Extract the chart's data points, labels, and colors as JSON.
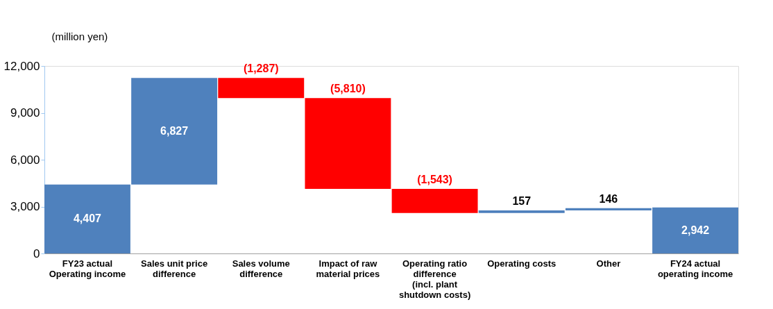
{
  "chart_data": {
    "type": "bar",
    "ylabel": "(million yen)",
    "categories": [
      "FY23 actual Operating income",
      "Sales unit price difference",
      "Sales volume difference",
      "Impact of raw material prices",
      "Operating ratio difference (incl. plant shutdown costs)",
      "Operating costs",
      "Other",
      "FY24 actual operating income"
    ],
    "values": [
      4407,
      6827,
      -1287,
      -5810,
      -1543,
      157,
      146,
      2942
    ],
    "base": [
      0,
      4407,
      11234,
      9947,
      4137,
      2594,
      2751,
      0
    ],
    "colors": [
      "#4f81bd",
      "#4f81bd",
      "#ff0000",
      "#ff0000",
      "#ff0000",
      "#4f81bd",
      "#4f81bd",
      "#4f81bd"
    ],
    "value_labels": [
      "4,407",
      "6,827",
      "(1,287)",
      "(5,810)",
      "(1,543)",
      "157",
      "146",
      "2,942"
    ],
    "ylim": [
      0,
      12000
    ],
    "yticks": [
      0,
      {
        "value": 3000,
        "label": "3,000"
      },
      {
        "value": 6000,
        "label": "6,000"
      },
      {
        "value": 9000,
        "label": "9,000"
      },
      {
        "value": 12000,
        "label": "12,000"
      }
    ],
    "grid": false
  }
}
